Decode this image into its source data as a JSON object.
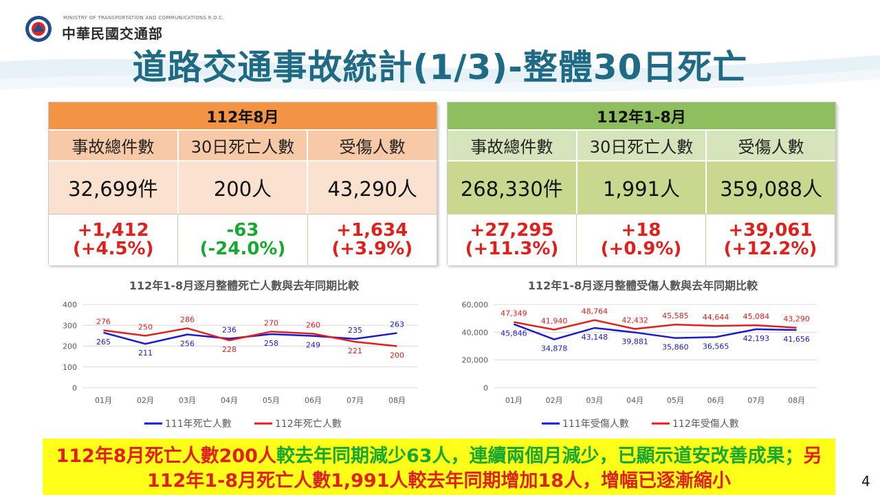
{
  "header": {
    "ministry_en": "MINISTRY OF TRANSPORTATION AND COMMUNICATIONS R.O.C.",
    "ministry_zh": "中華民國交通部",
    "title": "道路交通事故統計(1/3)-整體30日死亡"
  },
  "panel_month": {
    "title": "112年8月",
    "labels": [
      "事故總件數",
      "30日死亡人數",
      "受傷人數"
    ],
    "values": [
      "32,699件",
      "200人",
      "43,290人"
    ],
    "changes": [
      {
        "delta": "+1,412",
        "pct": "(+4.5%)",
        "color": "#e0201c"
      },
      {
        "delta": "-63",
        "pct": "(-24.0%)",
        "color": "#17a832"
      },
      {
        "delta": "+1,634",
        "pct": "(+3.9%)",
        "color": "#e0201c"
      }
    ]
  },
  "panel_ytd": {
    "title": "112年1-8月",
    "labels": [
      "事故總件數",
      "30日死亡人數",
      "受傷人數"
    ],
    "values": [
      "268,330件",
      "1,991人",
      "359,088人"
    ],
    "changes": [
      {
        "delta": "+27,295",
        "pct": "(+11.3%)",
        "color": "#e0201c"
      },
      {
        "delta": "+18",
        "pct": "(+0.9%)",
        "color": "#e0201c"
      },
      {
        "delta": "+39,061",
        "pct": "(+12.2%)",
        "color": "#e0201c"
      }
    ]
  },
  "chart_data": [
    {
      "type": "line",
      "title": "112年1-8月逐月整體死亡人數與去年同期比較",
      "categories": [
        "01月",
        "02月",
        "03月",
        "04月",
        "05月",
        "06月",
        "07月",
        "08月"
      ],
      "ylim": [
        0,
        400
      ],
      "yticks": [
        0,
        100,
        200,
        300,
        400
      ],
      "ytick_labels": [
        "0",
        "100",
        "200",
        "300",
        "400"
      ],
      "grid": true,
      "legend": "bottom",
      "series": [
        {
          "name": "111年死亡人數",
          "color": "#1a1acc",
          "values": [
            265,
            211,
            256,
            236,
            258,
            249,
            235,
            263
          ],
          "labels": [
            "265",
            "211",
            "256",
            "236",
            "258",
            "249",
            "235",
            "263"
          ]
        },
        {
          "name": "112年死亡人數",
          "color": "#e0201c",
          "values": [
            276,
            250,
            286,
            228,
            270,
            260,
            221,
            200
          ],
          "labels": [
            "276",
            "250",
            "286",
            "228",
            "270",
            "260",
            "221",
            "200"
          ]
        }
      ]
    },
    {
      "type": "line",
      "title": "112年1-8月逐月整體受傷人數與去年同期比較",
      "categories": [
        "01月",
        "02月",
        "03月",
        "04月",
        "05月",
        "06月",
        "07月",
        "08月"
      ],
      "ylim": [
        0,
        60000
      ],
      "yticks": [
        0,
        20000,
        40000,
        60000
      ],
      "ytick_labels": [
        "0",
        "20,000",
        "40,000",
        "60,000"
      ],
      "grid": true,
      "legend": "bottom",
      "series": [
        {
          "name": "111年受傷人數",
          "color": "#1a1acc",
          "values": [
            45846,
            34878,
            43148,
            39881,
            35860,
            36565,
            42193,
            41656
          ],
          "labels": [
            "45,846",
            "34,878",
            "43,148",
            "39,881",
            "35,860",
            "36,565",
            "42,193",
            "41,656"
          ]
        },
        {
          "name": "112年受傷人數",
          "color": "#e0201c",
          "values": [
            47349,
            41940,
            48764,
            42432,
            45585,
            44644,
            45084,
            43290
          ],
          "labels": [
            "47,349",
            "41,940",
            "48,764",
            "42,432",
            "45,585",
            "44,644",
            "45,084",
            "43,290"
          ]
        }
      ]
    }
  ],
  "summary": {
    "s1": "112年8月死亡人數200人",
    "s2": "較去年同期減少63人，連續兩個月減少，已顯示道安改善成果；",
    "s3": "另112年1-8月死亡人數1,991人較去年同期增加18人，增幅已逐漸縮小"
  },
  "page_number": "4"
}
